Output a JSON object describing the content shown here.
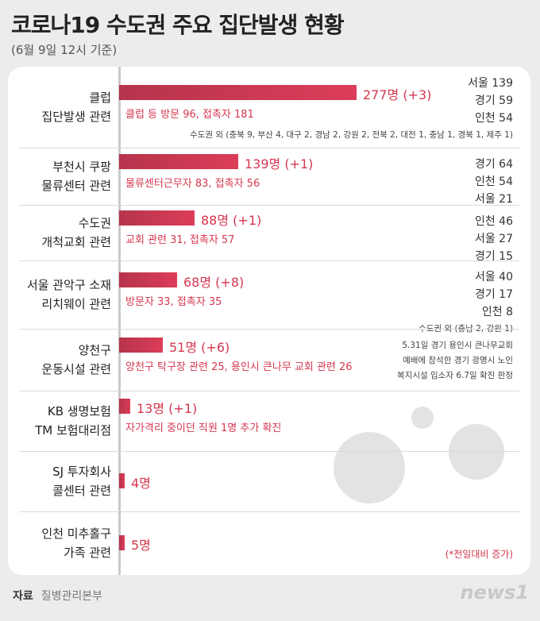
{
  "title": "코로나19 수도권 주요 집단발생 현황",
  "subtitle": "(6월 9일 12시 기준)",
  "colors": {
    "bar": "#d5374f",
    "accent_text": "#d5374f"
  },
  "chart_data": {
    "type": "bar",
    "orientation": "horizontal",
    "categories": [
      "클럽 집단발생 관련",
      "부천시 쿠팡 물류센터 관련",
      "수도권 개척교회 관련",
      "서울 관악구 소재 리치웨이 관련",
      "양천구 운동시설 관련",
      "KB 생명보험 TM 보험대리점",
      "SJ 투자회사 콜센터 관련",
      "인천 미추홀구 가족 관련"
    ],
    "values": [
      277,
      139,
      88,
      68,
      51,
      13,
      4,
      5
    ],
    "day_increase": [
      3,
      1,
      1,
      8,
      6,
      1,
      null,
      null
    ]
  },
  "rows": [
    {
      "label1": "클럽",
      "label2": "집단발생 관련",
      "value": "277명 (+3)",
      "detail": "클럽 등 방문 96, 접촉자 181",
      "regions": [
        "서울 139",
        "경기 59",
        "인천 54"
      ],
      "note": [
        "수도권 외 (충북 9, 부산 4, 대구 2, 경남 2, 강원 2, 전북 2, 대전 1, 충남 1, 경북 1, 제주 1)"
      ]
    },
    {
      "label1": "부천시 쿠팡",
      "label2": "물류센터 관련",
      "value": "139명 (+1)",
      "detail": "물류센터근무자 83, 접촉자 56",
      "regions": [
        "경기 64",
        "인천 54",
        "서울 21"
      ],
      "note": []
    },
    {
      "label1": "수도권",
      "label2": "개척교회 관련",
      "value": "88명 (+1)",
      "detail": "교회 관련 31, 접촉자 57",
      "regions": [
        "인천 46",
        "서울 27",
        "경기 15"
      ],
      "note": []
    },
    {
      "label1": "서울 관악구 소재",
      "label2": "리치웨이 관련",
      "value": "68명 (+8)",
      "detail": "방문자 33, 접촉자 35",
      "regions": [
        "서울 40",
        "경기 17",
        "인천 8"
      ],
      "note": [
        "수도권 외 (충남 2, 강원 1)"
      ]
    },
    {
      "label1": "양천구",
      "label2": "운동시설 관련",
      "value": "51명 (+6)",
      "detail": "양천구 탁구장 관련 25, 용인시 큰나무 교회 관련 26",
      "regions": [],
      "note": [
        "5.31일 경기 용인시 큰나무교회",
        "예배에 참석한 경기 광명시 노인",
        "복지시설 입소자 6.7일 확진 판정"
      ]
    },
    {
      "label1": "KB 생명보험",
      "label2": "TM 보험대리점",
      "value": "13명 (+1)",
      "detail": "자가격리 중이던 직원 1명 추가 확진",
      "regions": [],
      "note": []
    },
    {
      "label1": "SJ 투자회사",
      "label2": "콜센터 관련",
      "value": "4명",
      "detail": "",
      "regions": [],
      "note": []
    },
    {
      "label1": "인천 미추홀구",
      "label2": "가족 관련",
      "value": "5명",
      "detail": "",
      "regions": [],
      "note": []
    }
  ],
  "footnote": "(*전일대비 증가)",
  "source": {
    "label": "자료",
    "name": "질병관리본부"
  },
  "logo": "news1"
}
